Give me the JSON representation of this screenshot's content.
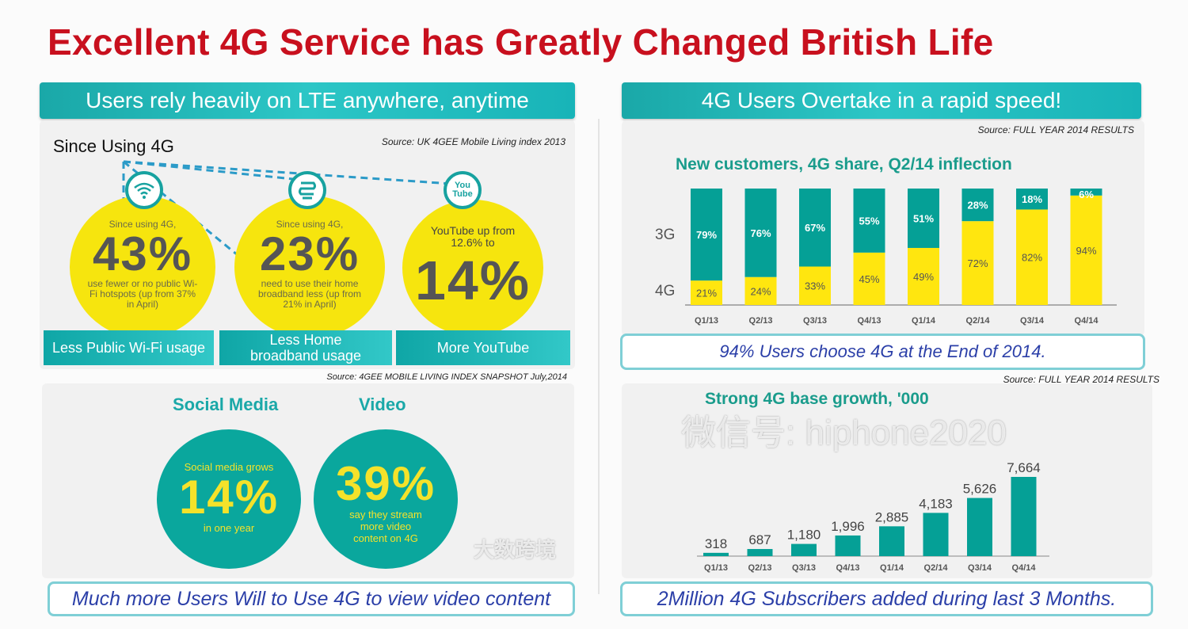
{
  "title": "Excellent 4G Service has Greatly Changed British Life",
  "left": {
    "header": "Users rely heavily on LTE anywhere, anytime",
    "since_label": "Since Using 4G",
    "source1": "Source: UK  4GEE Mobile Living  index  2013",
    "circles": [
      {
        "top": "Since using 4G,",
        "value": "43%",
        "bottom": "use fewer or no public Wi-Fi hotspots (up from 37% in April)",
        "label": "Less Public Wi-Fi usage",
        "icon": "wifi-icon"
      },
      {
        "top": "Since using 4G,",
        "value": "23%",
        "bottom": "need to use their home broadband less (up from 21% in April)",
        "label": "Less Home broadband usage",
        "icon": "router-icon"
      },
      {
        "top": "YouTube up from 12.6% to",
        "value": "14%",
        "bottom": "",
        "label": "More YouTube",
        "icon": "youtube-icon",
        "icon_text": "You Tube"
      }
    ],
    "source2": "Source: 4GEE MOBILE LIVING INDEX SNAPSHOT  July,2014",
    "social": {
      "heading": "Social Media",
      "top": "Social media grows",
      "value": "14%",
      "bottom": "in one year"
    },
    "video": {
      "heading": "Video",
      "value": "39%",
      "bottom": "say they stream more video content on 4G"
    },
    "caption": "Much more Users Will to Use 4G to view video content"
  },
  "right": {
    "header": "4G Users Overtake in a rapid speed!",
    "source1": "Source: FULL YEAR 2014 RESULTS",
    "caption1": "94% Users choose 4G at the End of 2014.",
    "source2": "Source: FULL YEAR 2014 RESULTS",
    "caption2": "2Million 4G Subscribers added during last 3 Months."
  },
  "chart_data": [
    {
      "type": "bar",
      "stacked": true,
      "title": "New customers, 4G share, Q2/14 inflection",
      "categories": [
        "Q1/13",
        "Q2/13",
        "Q3/13",
        "Q4/13",
        "Q1/14",
        "Q2/14",
        "Q3/14",
        "Q4/14"
      ],
      "series": [
        {
          "name": "4G",
          "values": [
            21,
            24,
            33,
            45,
            49,
            72,
            82,
            94
          ],
          "labels": [
            "21%",
            "24%",
            "33%",
            "45%",
            "49%",
            "72%",
            "82%",
            "94%"
          ],
          "color": "#ffe60f"
        },
        {
          "name": "3G",
          "values": [
            79,
            76,
            67,
            55,
            51,
            28,
            18,
            6
          ],
          "labels": [
            "79%",
            "76%",
            "67%",
            "55%",
            "51%",
            "28%",
            "18%",
            "6%"
          ],
          "color": "#05a096"
        }
      ],
      "ylim": [
        0,
        100
      ]
    },
    {
      "type": "bar",
      "title": "Strong 4G base growth, '000",
      "categories": [
        "Q1/13",
        "Q2/13",
        "Q3/13",
        "Q4/13",
        "Q1/14",
        "Q2/14",
        "Q3/14",
        "Q4/14"
      ],
      "values": [
        318,
        687,
        1180,
        1996,
        2885,
        4183,
        5626,
        7664
      ],
      "labels": [
        "318",
        "687",
        "1,180",
        "1,996",
        "2,885",
        "4,183",
        "5,626",
        "7,664"
      ],
      "color": "#05a096",
      "ylim": [
        0,
        7664
      ]
    }
  ],
  "watermarks": {
    "wechat": "微信号: hiphone2020",
    "corner": "大数跨境"
  }
}
